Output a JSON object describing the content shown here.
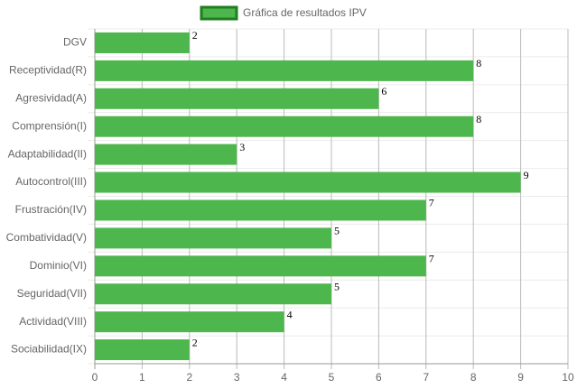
{
  "chart_data": {
    "type": "bar",
    "orientation": "horizontal",
    "categories": [
      "DGV",
      "Receptividad(R)",
      "Agresividad(A)",
      "Comprensión(I)",
      "Adaptabilidad(II)",
      "Autocontrol(III)",
      "Frustración(IV)",
      "Combatividad(V)",
      "Dominio(VI)",
      "Seguridad(VII)",
      "Actividad(VIII)",
      "Sociabilidad(IX)"
    ],
    "series": [
      {
        "name": "Gráfica de resultados IPV",
        "color": "#4db64d",
        "border_color": "#1f7f1f",
        "values": [
          2,
          8,
          6,
          8,
          3,
          9,
          7,
          5,
          7,
          5,
          4,
          2
        ]
      }
    ],
    "xlim": [
      0,
      10
    ],
    "xticks": [
      0,
      1,
      2,
      3,
      4,
      5,
      6,
      7,
      8,
      9,
      10
    ],
    "grid": true,
    "legend": "top"
  }
}
